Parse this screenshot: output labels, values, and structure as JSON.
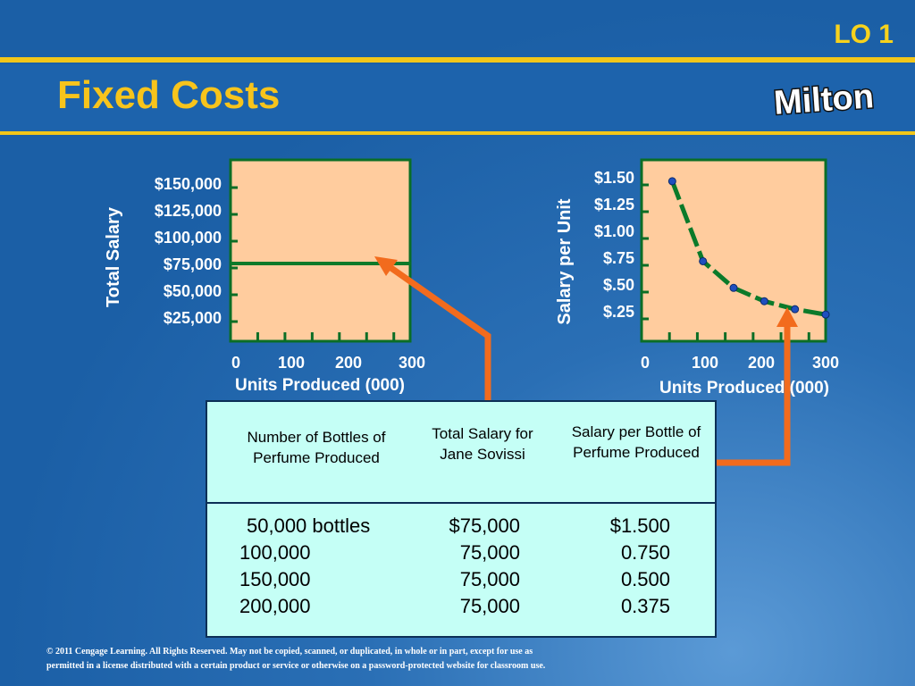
{
  "header": {
    "lo_label": "LO 1",
    "title": "Fixed Costs",
    "logo_text": "Milton"
  },
  "chart_data": [
    {
      "type": "line",
      "ylabel": "Total Salary",
      "xlabel": "Units Produced (000)",
      "x_ticks": [
        "0",
        "100",
        "200",
        "300"
      ],
      "y_ticks": [
        "$150,000",
        "$125,000",
        "$100,000",
        "$75,000",
        "$50,000",
        "$25,000"
      ],
      "xlim": [
        0,
        300
      ],
      "ylim": [
        0,
        175000
      ],
      "series": [
        {
          "x": [
            0,
            300
          ],
          "y": [
            75000,
            75000
          ]
        }
      ],
      "colors": {
        "plot_bg": "#ffcc9e",
        "line": "#0b7a2a"
      }
    },
    {
      "type": "line",
      "ylabel": "Salary per Unit",
      "xlabel": "Units Produced (000)",
      "x_ticks": [
        "0",
        "100",
        "200",
        "300"
      ],
      "y_ticks": [
        "$1.50",
        "$1.25",
        "$1.00",
        "$.75",
        "$.50",
        "$.25"
      ],
      "xlim": [
        0,
        300
      ],
      "ylim": [
        0,
        1.7
      ],
      "series": [
        {
          "x": [
            50,
            100,
            150,
            200,
            250,
            300
          ],
          "y": [
            1.5,
            0.75,
            0.5,
            0.375,
            0.3,
            0.25
          ]
        }
      ],
      "colors": {
        "plot_bg": "#ffcc9e",
        "line": "#0b7a2a",
        "marker": "#1f4fbf"
      }
    }
  ],
  "table": {
    "headers": [
      "Number of Bottles of Perfume Produced",
      "Total Salary for Jane Sovissi",
      "Salary per Bottle of Perfume Produced"
    ],
    "rows": [
      [
        "50,000 bottles",
        "$75,000",
        "$1.500"
      ],
      [
        "100,000",
        "75,000",
        "0.750"
      ],
      [
        "150,000",
        "75,000",
        "0.500"
      ],
      [
        "200,000",
        "75,000",
        "0.375"
      ]
    ]
  },
  "copyright": {
    "line1": "© 2011 Cengage Learning. All Rights Reserved. May not be copied, scanned, or duplicated, in whole or in part, except for use as",
    "line2": "permitted in a license distributed with a certain product or service or otherwise on a password-protected website for classroom use."
  },
  "colors": {
    "accent": "#f2c619",
    "arrow": "#f26b1d",
    "background": "#1b5fa6",
    "table_bg": "#c5fff6"
  }
}
